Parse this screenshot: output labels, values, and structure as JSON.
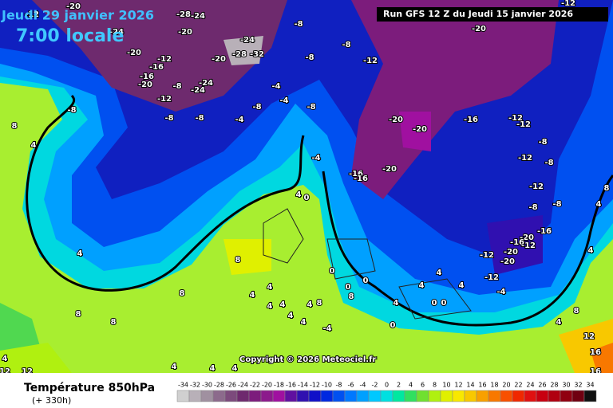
{
  "header": {
    "date": "Jeudi 29 janvier 2026",
    "time": "7:00 locale",
    "run": "Run GFS 12 Z du Jeudi 15 janvier 2026"
  },
  "copyright": "Copyright © 2026 Meteociel.fr",
  "footer": {
    "title": "Température 850hPa",
    "lead": "(+ 330h)"
  },
  "scale": {
    "values": [
      -34,
      -32,
      -30,
      -28,
      -26,
      -24,
      -22,
      -20,
      -18,
      -16,
      -14,
      -12,
      -10,
      -8,
      -6,
      -4,
      -2,
      0,
      2,
      4,
      6,
      8,
      10,
      12,
      14,
      16,
      18,
      20,
      22,
      24,
      26,
      28,
      30,
      32,
      34
    ],
    "colors": [
      "#d0d0d0",
      "#b8b0b8",
      "#a090a0",
      "#8c6a8c",
      "#7c4a7c",
      "#6e2a6e",
      "#7c1c7c",
      "#8c1a8c",
      "#a010a0",
      "#6010a0",
      "#3010b0",
      "#1010c8",
      "#0028e0",
      "#0050f0",
      "#0078ff",
      "#00a0ff",
      "#00c8ff",
      "#00e0e0",
      "#00e8a0",
      "#30e060",
      "#70e030",
      "#b0f010",
      "#e0f000",
      "#f8e800",
      "#f8c800",
      "#f8a000",
      "#f87800",
      "#f85000",
      "#f02800",
      "#e01010",
      "#c80010",
      "#b00010",
      "#900010",
      "#700010",
      "#101010"
    ]
  },
  "contour_labels": [
    -12,
    -20,
    -28,
    -24,
    -20,
    -24,
    -20,
    -12,
    -16,
    -16,
    -20,
    -8,
    -24,
    -24,
    -12,
    -8,
    -8,
    -8,
    -24,
    -28,
    -32,
    -20,
    -8,
    -8,
    -8,
    -12,
    -4,
    -4,
    -8,
    -8,
    -4,
    8,
    4,
    -20,
    -12,
    -20,
    -20,
    -16,
    -12,
    -12,
    -8,
    -12,
    -8,
    -16,
    -16,
    -20,
    -12,
    -8,
    -8,
    -16,
    -20,
    -16,
    -12,
    -20,
    -12,
    -20,
    -12,
    -4,
    -4,
    4,
    0,
    8,
    4,
    8,
    4,
    4,
    4,
    4,
    4,
    8,
    4,
    4,
    0,
    0,
    8,
    0,
    4,
    4,
    4,
    4,
    0,
    0,
    0,
    8,
    8,
    4,
    12,
    12,
    4,
    4,
    4,
    8,
    4,
    4,
    8,
    4,
    12,
    16,
    16,
    -4
  ]
}
